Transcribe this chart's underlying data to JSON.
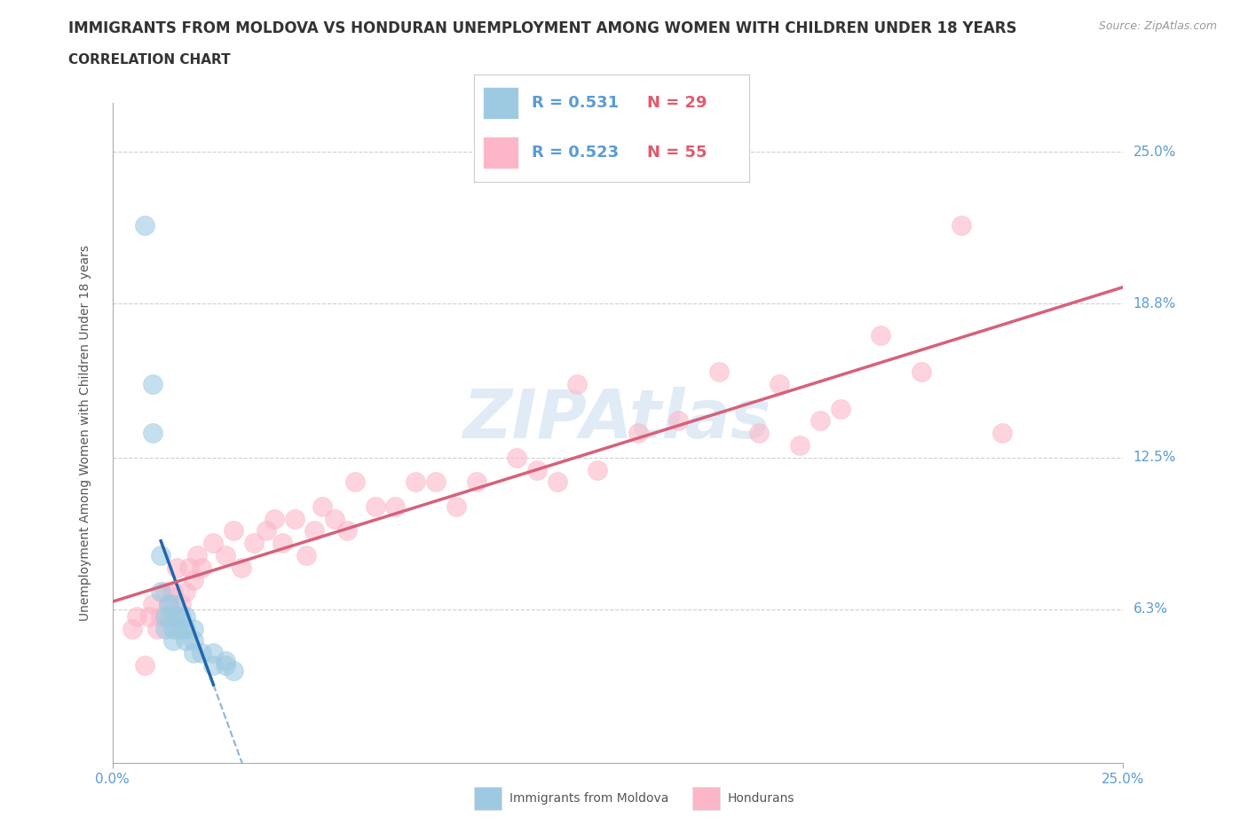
{
  "title": "IMMIGRANTS FROM MOLDOVA VS HONDURAN UNEMPLOYMENT AMONG WOMEN WITH CHILDREN UNDER 18 YEARS",
  "subtitle": "CORRELATION CHART",
  "source": "Source: ZipAtlas.com",
  "ylabel": "Unemployment Among Women with Children Under 18 years",
  "xlim": [
    0.0,
    0.25
  ],
  "ylim": [
    0.0,
    0.27
  ],
  "xticks": [
    0.0,
    0.25
  ],
  "xticklabels": [
    "0.0%",
    "25.0%"
  ],
  "ytick_positions": [
    0.063,
    0.125,
    0.188,
    0.25
  ],
  "ytick_labels": [
    "6.3%",
    "12.5%",
    "18.8%",
    "25.0%"
  ],
  "watermark": "ZIPAtlas",
  "color_moldova": "#9ecae1",
  "color_honduras": "#fcb6c8",
  "trendline_color_moldova": "#2166ac",
  "trendline_color_honduras": "#d6617a",
  "moldova_x": [
    0.008,
    0.01,
    0.01,
    0.012,
    0.012,
    0.013,
    0.013,
    0.014,
    0.014,
    0.015,
    0.015,
    0.015,
    0.015,
    0.016,
    0.016,
    0.017,
    0.017,
    0.018,
    0.018,
    0.018,
    0.02,
    0.02,
    0.02,
    0.022,
    0.025,
    0.025,
    0.028,
    0.028,
    0.03
  ],
  "moldova_y": [
    0.22,
    0.155,
    0.135,
    0.085,
    0.07,
    0.06,
    0.055,
    0.065,
    0.06,
    0.05,
    0.055,
    0.06,
    0.065,
    0.055,
    0.06,
    0.055,
    0.06,
    0.05,
    0.055,
    0.06,
    0.045,
    0.05,
    0.055,
    0.045,
    0.04,
    0.045,
    0.04,
    0.042,
    0.038
  ],
  "honduras_x": [
    0.005,
    0.006,
    0.008,
    0.009,
    0.01,
    0.011,
    0.012,
    0.013,
    0.014,
    0.015,
    0.016,
    0.017,
    0.018,
    0.019,
    0.02,
    0.021,
    0.022,
    0.025,
    0.028,
    0.03,
    0.032,
    0.035,
    0.038,
    0.04,
    0.042,
    0.045,
    0.048,
    0.05,
    0.052,
    0.055,
    0.058,
    0.06,
    0.065,
    0.07,
    0.075,
    0.08,
    0.085,
    0.09,
    0.1,
    0.105,
    0.11,
    0.115,
    0.12,
    0.13,
    0.14,
    0.15,
    0.16,
    0.165,
    0.17,
    0.175,
    0.18,
    0.19,
    0.2,
    0.21,
    0.22
  ],
  "honduras_y": [
    0.055,
    0.06,
    0.04,
    0.06,
    0.065,
    0.055,
    0.06,
    0.07,
    0.065,
    0.07,
    0.08,
    0.065,
    0.07,
    0.08,
    0.075,
    0.085,
    0.08,
    0.09,
    0.085,
    0.095,
    0.08,
    0.09,
    0.095,
    0.1,
    0.09,
    0.1,
    0.085,
    0.095,
    0.105,
    0.1,
    0.095,
    0.115,
    0.105,
    0.105,
    0.115,
    0.115,
    0.105,
    0.115,
    0.125,
    0.12,
    0.115,
    0.155,
    0.12,
    0.135,
    0.14,
    0.16,
    0.135,
    0.155,
    0.13,
    0.14,
    0.145,
    0.175,
    0.16,
    0.22,
    0.135
  ],
  "background_color": "#ffffff",
  "grid_color": "#bbbbbb",
  "title_fontsize": 12,
  "subtitle_fontsize": 11,
  "axis_label_fontsize": 10,
  "legend_r1": "R = 0.531",
  "legend_n1": "N = 29",
  "legend_r2": "R = 0.523",
  "legend_n2": "N = 55"
}
